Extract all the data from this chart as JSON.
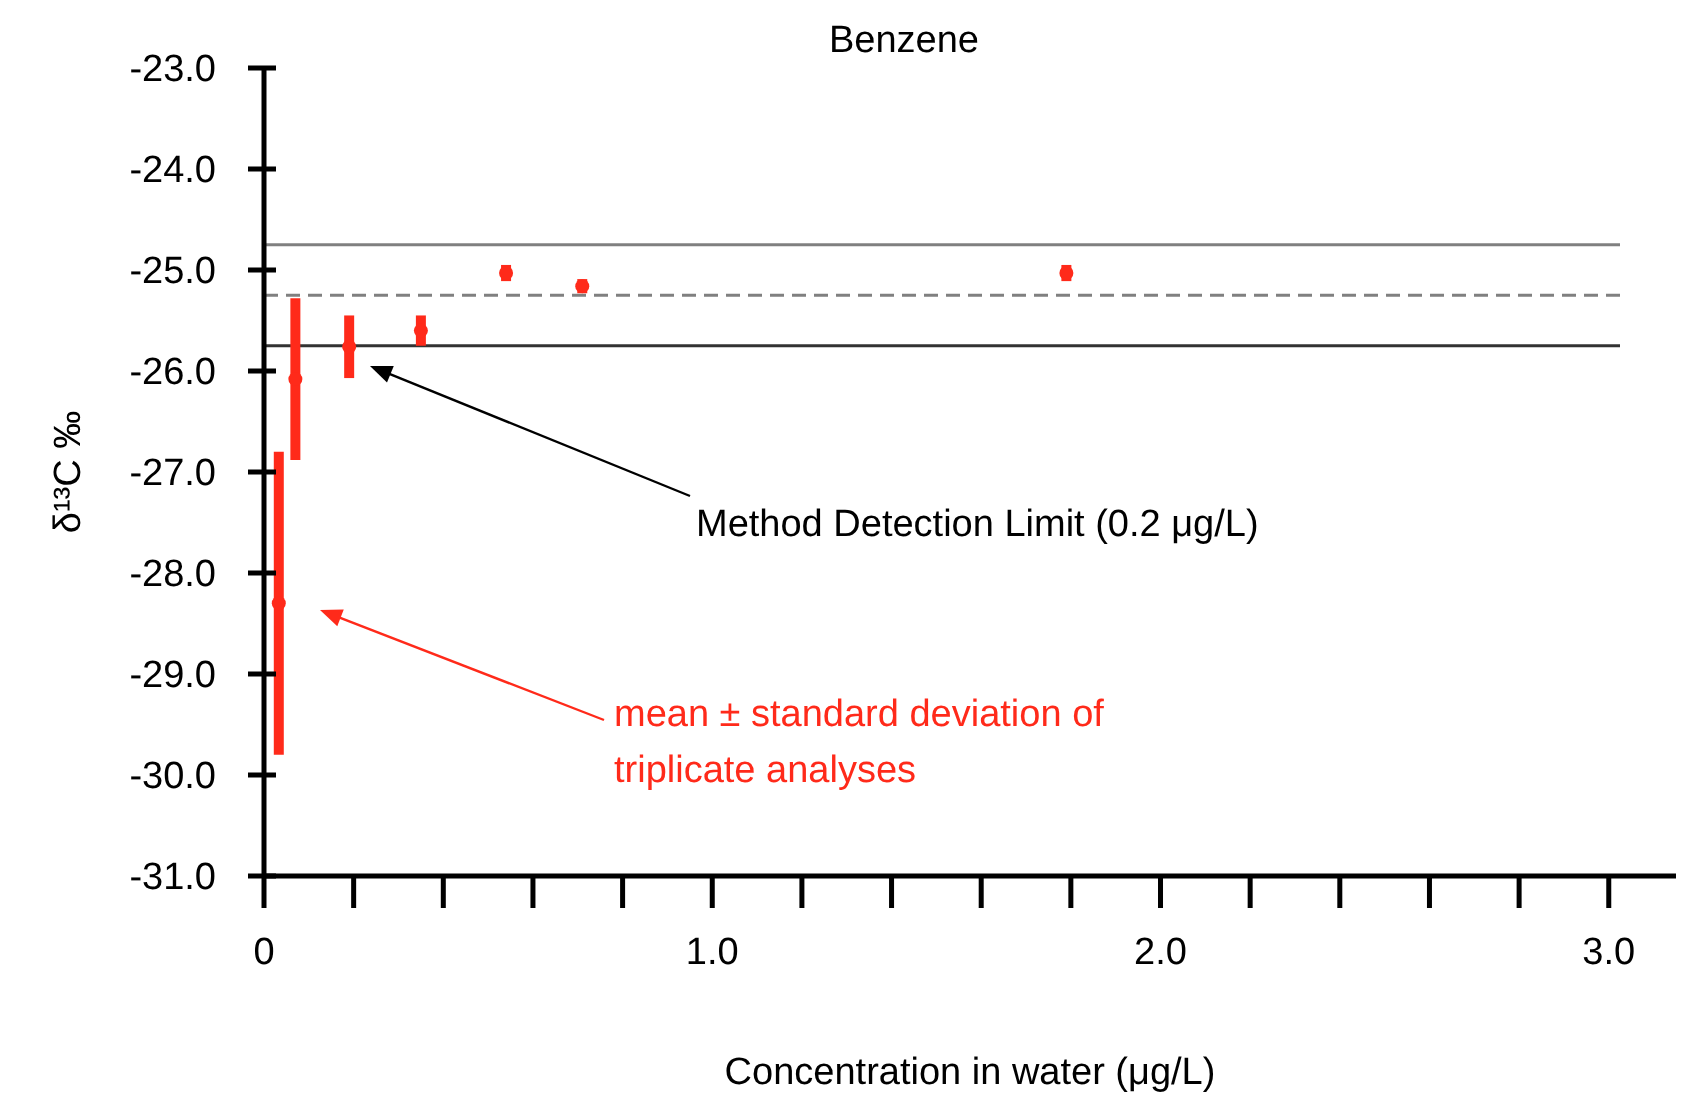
{
  "chart_data": {
    "type": "scatter",
    "title": "Benzene",
    "xlabel": "Concentration in water (μg/L)",
    "ylabel": "δ¹³C ‰",
    "marker": "circle",
    "grid": false,
    "x": [
      0.033,
      0.07,
      0.19,
      0.35,
      0.54,
      0.71,
      1.79
    ],
    "series": [
      {
        "color": "#ff2a1a",
        "values": [
          -28.3,
          -26.08,
          -25.76,
          -25.6,
          -25.03,
          -25.16,
          -25.03
        ],
        "errors": [
          1.5,
          0.8,
          0.31,
          0.15,
          0.08,
          0.07,
          0.08
        ]
      }
    ],
    "xlim": [
      0,
      3.15
    ],
    "ylim": [
      -31,
      -23
    ],
    "xticks": [
      {
        "value": 0,
        "label": "0"
      },
      {
        "value": 0.2,
        "label": null
      },
      {
        "value": 0.4,
        "label": null
      },
      {
        "value": 0.6,
        "label": null
      },
      {
        "value": 0.8,
        "label": null
      },
      {
        "value": 1,
        "label": "1.0"
      },
      {
        "value": 1.2,
        "label": null
      },
      {
        "value": 1.4,
        "label": null
      },
      {
        "value": 1.6,
        "label": null
      },
      {
        "value": 1.8,
        "label": null
      },
      {
        "value": 2,
        "label": "2.0"
      },
      {
        "value": 2.2,
        "label": null
      },
      {
        "value": 2.4,
        "label": null
      },
      {
        "value": 2.6,
        "label": null
      },
      {
        "value": 2.8,
        "label": null
      },
      {
        "value": 3,
        "label": "3.0"
      }
    ],
    "yticks": [
      {
        "value": -31,
        "label": "-31.0"
      },
      {
        "value": -30,
        "label": "-30.0"
      },
      {
        "value": -29,
        "label": "-29.0"
      },
      {
        "value": -28,
        "label": "-28.0"
      },
      {
        "value": -27,
        "label": "-27.0"
      },
      {
        "value": -26,
        "label": "-26.0"
      },
      {
        "value": -25,
        "label": "-25.0"
      },
      {
        "value": -24,
        "label": "-24.0"
      },
      {
        "value": -23,
        "label": "-23.0"
      }
    ],
    "ref_lines": [
      {
        "axis": "y",
        "value": -24.75,
        "color": "#808080",
        "line_style": "solid"
      },
      {
        "axis": "y",
        "value": -25.25,
        "color": "#808080",
        "line_style": "dashed"
      },
      {
        "axis": "y",
        "value": -25.75,
        "color": "#333333",
        "line_style": "solid"
      }
    ],
    "annotations": [
      "Method Detection Limit (0.2 μg/L)",
      "mean ± standard deviation of triplicate analyses"
    ]
  }
}
